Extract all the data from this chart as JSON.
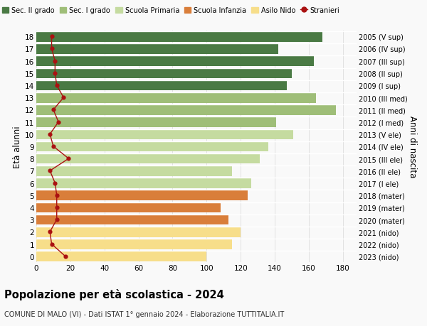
{
  "ages": [
    0,
    1,
    2,
    3,
    4,
    5,
    6,
    7,
    8,
    9,
    10,
    11,
    12,
    13,
    14,
    15,
    16,
    17,
    18
  ],
  "bar_values": [
    100,
    115,
    120,
    113,
    108,
    124,
    126,
    115,
    131,
    136,
    151,
    141,
    176,
    164,
    147,
    150,
    163,
    142,
    168
  ],
  "stranieri": [
    17,
    9,
    8,
    12,
    12,
    12,
    11,
    8,
    19,
    10,
    8,
    13,
    10,
    16,
    12,
    11,
    11,
    9,
    9
  ],
  "right_labels": [
    "2023 (nido)",
    "2022 (nido)",
    "2021 (nido)",
    "2020 (mater)",
    "2019 (mater)",
    "2018 (mater)",
    "2017 (I ele)",
    "2016 (II ele)",
    "2015 (III ele)",
    "2014 (IV ele)",
    "2013 (V ele)",
    "2012 (I med)",
    "2011 (II med)",
    "2010 (III med)",
    "2009 (I sup)",
    "2008 (II sup)",
    "2007 (III sup)",
    "2006 (IV sup)",
    "2005 (V sup)"
  ],
  "bar_colors": [
    "#f7de8a",
    "#f7de8a",
    "#f7de8a",
    "#d97e3a",
    "#d97e3a",
    "#d97e3a",
    "#c5dba0",
    "#c5dba0",
    "#c5dba0",
    "#c5dba0",
    "#c5dba0",
    "#9fbe78",
    "#9fbe78",
    "#9fbe78",
    "#4a7a44",
    "#4a7a44",
    "#4a7a44",
    "#4a7a44",
    "#4a7a44"
  ],
  "stranieri_color": "#aa1111",
  "legend_labels": [
    "Sec. II grado",
    "Sec. I grado",
    "Scuola Primaria",
    "Scuola Infanzia",
    "Asilo Nido",
    "Stranieri"
  ],
  "legend_colors": [
    "#4a7a44",
    "#9fbe78",
    "#c5dba0",
    "#d97e3a",
    "#f7de8a",
    "#aa1111"
  ],
  "ylabel": "Età alunni",
  "right_ylabel": "Anni di nascita",
  "title": "Popolazione per età scolastica - 2024",
  "subtitle": "COMUNE DI MALO (VI) - Dati ISTAT 1° gennaio 2024 - Elaborazione TUTTITALIA.IT",
  "xlim": [
    0,
    188
  ],
  "xticks": [
    0,
    20,
    40,
    60,
    80,
    100,
    120,
    140,
    160,
    180
  ],
  "background_color": "#f9f9f9",
  "grid_color": "#dddddd"
}
